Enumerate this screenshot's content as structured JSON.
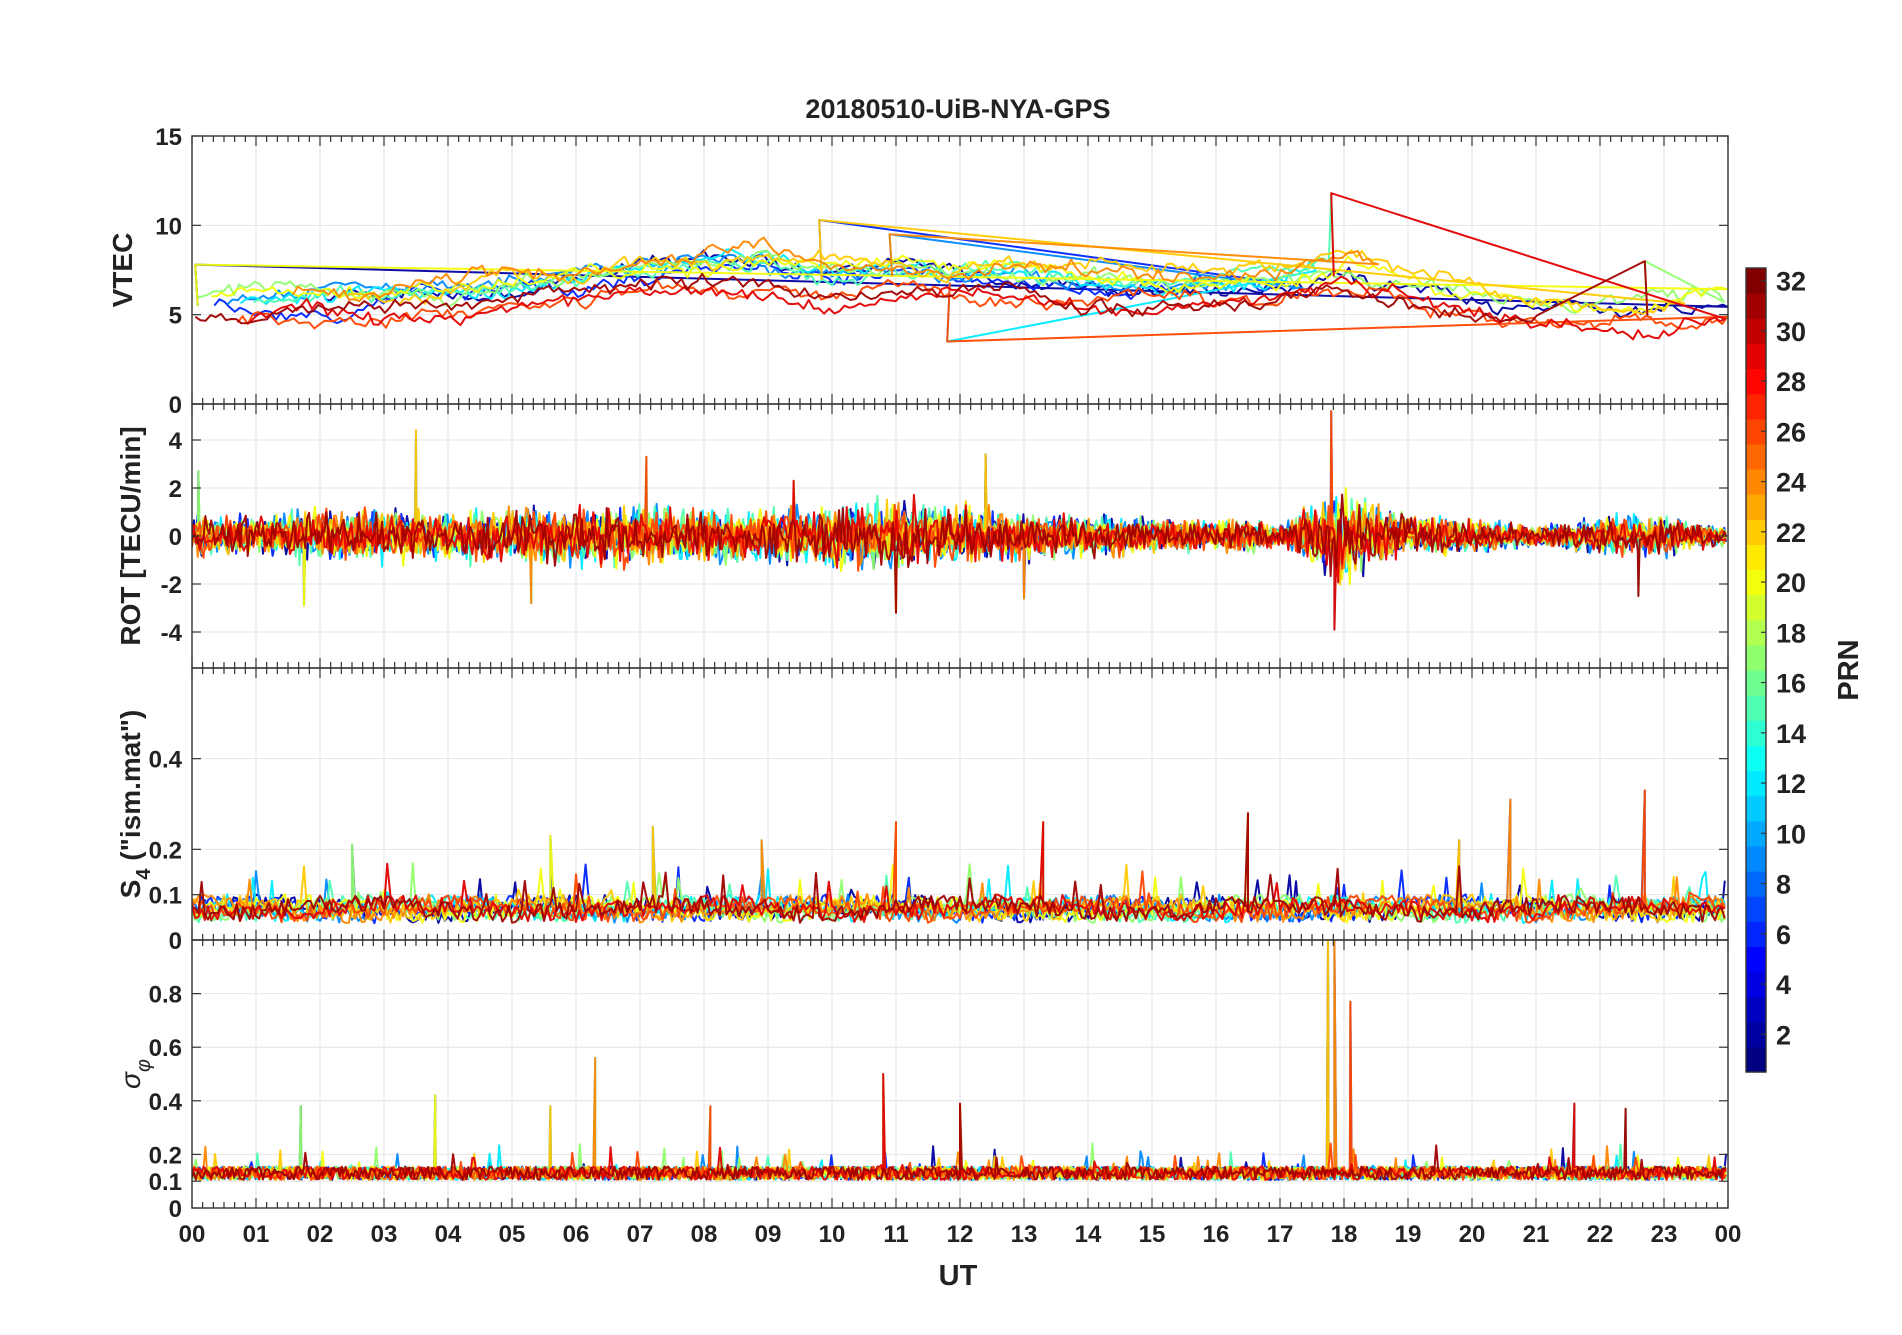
{
  "title": "20180510-UiB-NYA-GPS",
  "chart_data": [
    {
      "type": "line",
      "ylabel": "VTEC",
      "ylim": [
        0,
        15
      ],
      "yticks": [
        0,
        5,
        10,
        15
      ],
      "yticklabels": [
        "0",
        "5",
        "10",
        "15"
      ],
      "grid": true,
      "series_prn": [
        2,
        6,
        9,
        12,
        15,
        17,
        20,
        22,
        24,
        26,
        29,
        31
      ],
      "baseline_hours": [
        0,
        1,
        2,
        3,
        4,
        5,
        6,
        7,
        8,
        9,
        10,
        11,
        12,
        13,
        14,
        15,
        16,
        17,
        18,
        19,
        20,
        21,
        22,
        23,
        24
      ],
      "baseline_values": [
        5.5,
        5.3,
        5.5,
        5.4,
        5.8,
        6.2,
        6.5,
        7.0,
        7.4,
        7.5,
        6.8,
        7.2,
        6.7,
        6.8,
        6.4,
        6.3,
        6.4,
        6.5,
        7.3,
        6.5,
        5.8,
        5.2,
        4.8,
        5.0,
        5.4
      ],
      "spike_hours": [
        0.05,
        9.8,
        10.9,
        11.8,
        17.8,
        22.7
      ],
      "spike_values": [
        7.8,
        10.3,
        9.5,
        3.5,
        11.8,
        8.0
      ]
    },
    {
      "type": "line",
      "ylabel": "ROT [TECU/min]",
      "ylim": [
        -5.5,
        5.5
      ],
      "yticks": [
        -4,
        -2,
        0,
        2,
        4
      ],
      "yticklabels": [
        "-4",
        "-2",
        "0",
        "2",
        "4"
      ],
      "grid": true,
      "baseline_value": 0,
      "amplitude_hours": [
        0,
        1,
        2,
        3,
        4,
        5,
        6,
        7,
        8,
        9,
        10,
        11,
        12,
        13,
        14,
        15,
        16,
        17,
        18,
        19,
        20,
        21,
        22,
        23,
        24
      ],
      "amplitude_values": [
        0.6,
        0.6,
        0.8,
        0.8,
        0.7,
        0.8,
        0.9,
        0.9,
        0.8,
        0.8,
        0.9,
        1.1,
        0.9,
        0.7,
        0.6,
        0.5,
        0.5,
        0.4,
        1.4,
        0.6,
        0.5,
        0.3,
        0.6,
        0.6,
        0.3
      ],
      "spike_hours": [
        0.1,
        1.75,
        3.5,
        5.3,
        7.1,
        9.4,
        11.0,
        12.4,
        13.0,
        17.8,
        17.85,
        22.6
      ],
      "spike_values": [
        2.7,
        -2.9,
        4.4,
        -2.8,
        3.3,
        2.3,
        -3.2,
        3.4,
        -2.6,
        5.2,
        -3.9,
        -2.5
      ]
    },
    {
      "type": "line",
      "ylabel": "S4 (\"ism.mat\")",
      "ylabel_main": "S",
      "ylabel_sub": "4",
      "ylabel_rest": " (\"ism.mat\")",
      "ylim": [
        0,
        0.6
      ],
      "yticks": [
        0,
        0.1,
        0.2,
        0.4
      ],
      "yticklabels": [
        "0",
        "0.1",
        "0.2",
        "0.4"
      ],
      "grid": true,
      "baseline_value": 0.065,
      "spike_hours": [
        2.5,
        5.6,
        7.2,
        8.9,
        11.0,
        13.3,
        16.5,
        19.8,
        20.6,
        22.7
      ],
      "spike_values": [
        0.21,
        0.23,
        0.25,
        0.22,
        0.26,
        0.26,
        0.28,
        0.22,
        0.31,
        0.33
      ]
    },
    {
      "type": "line",
      "ylabel": "σφ",
      "ylabel_main": "σ",
      "ylabel_sub": "φ",
      "ylim": [
        0,
        1
      ],
      "yticks": [
        0,
        0.1,
        0.2,
        0.4,
        0.6,
        0.8
      ],
      "yticklabels": [
        "0",
        "0.1",
        "0.2",
        "0.4",
        "0.6",
        "0.8"
      ],
      "grid": true,
      "baseline_value": 0.13,
      "spike_hours": [
        1.7,
        3.8,
        5.6,
        6.3,
        8.1,
        10.8,
        12.0,
        17.75,
        17.85,
        18.1,
        21.6,
        22.4
      ],
      "spike_values": [
        0.38,
        0.42,
        0.38,
        0.56,
        0.38,
        0.5,
        0.39,
        1.0,
        1.0,
        0.77,
        0.39,
        0.37
      ]
    }
  ],
  "xaxis": {
    "label": "UT",
    "xlim": [
      0,
      24
    ],
    "ticklabels": [
      "00",
      "01",
      "02",
      "03",
      "04",
      "05",
      "06",
      "07",
      "08",
      "09",
      "10",
      "11",
      "12",
      "13",
      "14",
      "15",
      "16",
      "17",
      "18",
      "19",
      "20",
      "21",
      "22",
      "23",
      "00"
    ]
  },
  "colorbar": {
    "label": "PRN",
    "range": [
      1,
      32
    ],
    "ticks": [
      2,
      4,
      6,
      8,
      10,
      12,
      14,
      16,
      18,
      20,
      22,
      24,
      26,
      28,
      30,
      32
    ],
    "ticklabels": [
      "2",
      "4",
      "6",
      "8",
      "10",
      "12",
      "14",
      "16",
      "18",
      "20",
      "22",
      "24",
      "26",
      "28",
      "30",
      "32"
    ],
    "colormap": "jet"
  }
}
